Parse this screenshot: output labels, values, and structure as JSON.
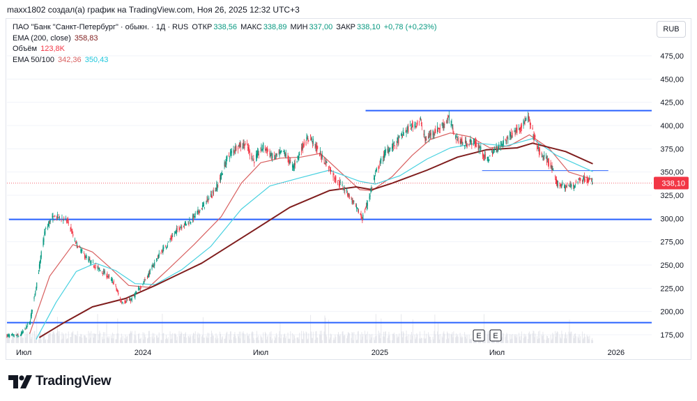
{
  "header": {
    "attribution": "maxx1802 создал(а) график на TradingView.com, Ноя 26, 2025 12:32 UTC+3"
  },
  "legend": {
    "symbol": "ПАО \"Банк \"Санкт-Петербург\" · обыкн. · 1Д · RUS",
    "open_label": "ОТКР",
    "open": "338,56",
    "high_label": "МАКС",
    "high": "338,89",
    "low_label": "МИН",
    "low": "337,00",
    "close_label": "ЗАКР",
    "close": "338,10",
    "change": "+0,78 (+0,23%)",
    "ema200_label": "EMA (200, close)",
    "ema200_value": "358,83",
    "volume_label": "Объём",
    "volume_value": "123,8K",
    "ema50_100_label": "EMA 50/100",
    "ema50_value": "342,36",
    "ema100_value": "350,43"
  },
  "currency_button": "RUB",
  "brand": {
    "name": "TradingView"
  },
  "events": [
    "E",
    "E"
  ],
  "chart_data": {
    "type": "candlestick",
    "currency": "RUB",
    "last_price": 338.1,
    "last_price_label": "338,10",
    "y_ticks": [
      175,
      200,
      225,
      250,
      275,
      300,
      325,
      350,
      375,
      400,
      425,
      450,
      475
    ],
    "y_tick_labels": [
      "175,00",
      "200,00",
      "225,00",
      "250,00",
      "275,00",
      "300,00",
      "325,00",
      "350,00",
      "375,00",
      "400,00",
      "425,00",
      "450,00",
      "475,00"
    ],
    "y_range": [
      166,
      490
    ],
    "x_range": [
      "2023-06-05",
      "2026-02-25"
    ],
    "x_ticks": [
      {
        "date": "2023-07-01",
        "label": "Июл"
      },
      {
        "date": "2024-01-01",
        "label": "2024"
      },
      {
        "date": "2024-07-01",
        "label": "Июл"
      },
      {
        "date": "2025-01-01",
        "label": "2025"
      },
      {
        "date": "2025-07-01",
        "label": "Июл"
      },
      {
        "date": "2026-01-01",
        "label": "2026"
      }
    ],
    "horizontal_levels": [
      {
        "price": 416,
        "from": "2024-12-10",
        "to": "2026-02-25",
        "color": "#2962ff"
      },
      {
        "price": 299,
        "from": "2023-06-08",
        "to": "2026-02-25",
        "color": "#2962ff"
      },
      {
        "price": 188,
        "from": "2023-06-05",
        "to": "2026-02-25",
        "color": "#2962ff"
      },
      {
        "price": 351.5,
        "from": "2025-06-08",
        "to": "2025-12-20",
        "color": "#2962ff"
      }
    ],
    "price_anchors": [
      [
        "2023-06-05",
        174
      ],
      [
        "2023-06-25",
        174
      ],
      [
        "2023-07-10",
        188
      ],
      [
        "2023-07-22",
        235
      ],
      [
        "2023-08-02",
        285
      ],
      [
        "2023-08-12",
        300
      ],
      [
        "2023-08-25",
        302
      ],
      [
        "2023-09-08",
        296
      ],
      [
        "2023-09-18",
        275
      ],
      [
        "2023-10-05",
        258
      ],
      [
        "2023-10-20",
        248
      ],
      [
        "2023-11-05",
        240
      ],
      [
        "2023-11-18",
        230
      ],
      [
        "2023-11-28",
        210
      ],
      [
        "2023-12-15",
        213
      ],
      [
        "2024-01-08",
        238
      ],
      [
        "2024-01-25",
        260
      ],
      [
        "2024-02-10",
        275
      ],
      [
        "2024-02-25",
        290
      ],
      [
        "2024-03-15",
        298
      ],
      [
        "2024-04-05",
        315
      ],
      [
        "2024-04-25",
        335
      ],
      [
        "2024-05-10",
        365
      ],
      [
        "2024-05-25",
        378
      ],
      [
        "2024-06-08",
        380
      ],
      [
        "2024-06-20",
        362
      ],
      [
        "2024-07-05",
        378
      ],
      [
        "2024-07-20",
        365
      ],
      [
        "2024-08-05",
        372
      ],
      [
        "2024-08-20",
        355
      ],
      [
        "2024-09-05",
        380
      ],
      [
        "2024-09-15",
        388
      ],
      [
        "2024-09-28",
        372
      ],
      [
        "2024-10-10",
        360
      ],
      [
        "2024-10-25",
        342
      ],
      [
        "2024-11-10",
        330
      ],
      [
        "2024-11-25",
        312
      ],
      [
        "2024-12-05",
        300
      ],
      [
        "2024-12-15",
        322
      ],
      [
        "2024-12-25",
        348
      ],
      [
        "2025-01-10",
        372
      ],
      [
        "2025-01-25",
        380
      ],
      [
        "2025-02-08",
        393
      ],
      [
        "2025-02-20",
        400
      ],
      [
        "2025-03-05",
        405
      ],
      [
        "2025-03-12",
        384
      ],
      [
        "2025-03-22",
        392
      ],
      [
        "2025-04-05",
        398
      ],
      [
        "2025-04-18",
        408
      ],
      [
        "2025-04-28",
        388
      ],
      [
        "2025-05-10",
        380
      ],
      [
        "2025-05-25",
        383
      ],
      [
        "2025-06-05",
        375
      ],
      [
        "2025-06-15",
        362
      ],
      [
        "2025-06-25",
        372
      ],
      [
        "2025-07-08",
        380
      ],
      [
        "2025-07-22",
        390
      ],
      [
        "2025-08-08",
        400
      ],
      [
        "2025-08-18",
        408
      ],
      [
        "2025-08-25",
        392
      ],
      [
        "2025-09-05",
        370
      ],
      [
        "2025-09-20",
        360
      ],
      [
        "2025-10-01",
        338
      ],
      [
        "2025-10-15",
        334
      ],
      [
        "2025-10-28",
        336
      ],
      [
        "2025-11-05",
        342
      ],
      [
        "2025-11-15",
        343
      ],
      [
        "2025-11-26",
        338.1
      ]
    ],
    "ema_anchors": {
      "EMA 50": [
        [
          "2023-07-10",
          176
        ],
        [
          "2023-08-10",
          238
        ],
        [
          "2023-09-15",
          272
        ],
        [
          "2023-10-15",
          264
        ],
        [
          "2023-11-10",
          248
        ],
        [
          "2023-12-10",
          228
        ],
        [
          "2024-01-10",
          226
        ],
        [
          "2024-02-10",
          246
        ],
        [
          "2024-03-20",
          272
        ],
        [
          "2024-05-01",
          302
        ],
        [
          "2024-06-01",
          338
        ],
        [
          "2024-07-01",
          360
        ],
        [
          "2024-08-01",
          365
        ],
        [
          "2024-09-01",
          366
        ],
        [
          "2024-10-01",
          370
        ],
        [
          "2024-11-01",
          350
        ],
        [
          "2024-12-01",
          331
        ],
        [
          "2024-12-20",
          330
        ],
        [
          "2025-01-20",
          345
        ],
        [
          "2025-02-20",
          368
        ],
        [
          "2025-03-20",
          385
        ],
        [
          "2025-04-20",
          392
        ],
        [
          "2025-05-20",
          388
        ],
        [
          "2025-06-20",
          376
        ],
        [
          "2025-07-20",
          378
        ],
        [
          "2025-08-20",
          390
        ],
        [
          "2025-09-20",
          375
        ],
        [
          "2025-10-20",
          350
        ],
        [
          "2025-11-26",
          342
        ]
      ],
      "EMA 100": [
        [
          "2023-07-20",
          170
        ],
        [
          "2023-08-20",
          210
        ],
        [
          "2023-09-20",
          243
        ],
        [
          "2023-10-20",
          252
        ],
        [
          "2023-11-20",
          244
        ],
        [
          "2023-12-20",
          230
        ],
        [
          "2024-01-20",
          229
        ],
        [
          "2024-03-01",
          245
        ],
        [
          "2024-04-15",
          270
        ],
        [
          "2024-06-01",
          310
        ],
        [
          "2024-07-15",
          335
        ],
        [
          "2024-09-01",
          344
        ],
        [
          "2024-10-15",
          352
        ],
        [
          "2024-12-01",
          340
        ],
        [
          "2024-12-25",
          337
        ],
        [
          "2025-02-01",
          346
        ],
        [
          "2025-03-15",
          364
        ],
        [
          "2025-04-20",
          376
        ],
        [
          "2025-06-01",
          381
        ],
        [
          "2025-07-15",
          378
        ],
        [
          "2025-08-25",
          386
        ],
        [
          "2025-10-01",
          368
        ],
        [
          "2025-11-26",
          350.4
        ]
      ],
      "EMA 200": [
        [
          "2023-07-25",
          172
        ],
        [
          "2023-09-01",
          188
        ],
        [
          "2023-10-15",
          205
        ],
        [
          "2023-12-05",
          214
        ],
        [
          "2024-01-20",
          228
        ],
        [
          "2024-04-01",
          252
        ],
        [
          "2024-06-15",
          285
        ],
        [
          "2024-08-15",
          312
        ],
        [
          "2024-10-15",
          330
        ],
        [
          "2024-11-25",
          334
        ],
        [
          "2024-12-20",
          331
        ],
        [
          "2025-01-20",
          338
        ],
        [
          "2025-03-15",
          352
        ],
        [
          "2025-05-01",
          366
        ],
        [
          "2025-06-15",
          374
        ],
        [
          "2025-08-01",
          376
        ],
        [
          "2025-08-25",
          381
        ],
        [
          "2025-10-15",
          372
        ],
        [
          "2025-11-26",
          358.8
        ]
      ]
    },
    "ema_colors": {
      "EMA 50": "#d86060",
      "EMA 100": "#48d1e0",
      "EMA 200": "#7f1d1d"
    },
    "candle_colors": {
      "up": "#089981",
      "down": "#f23645"
    },
    "last_date": "2025-11-26"
  }
}
